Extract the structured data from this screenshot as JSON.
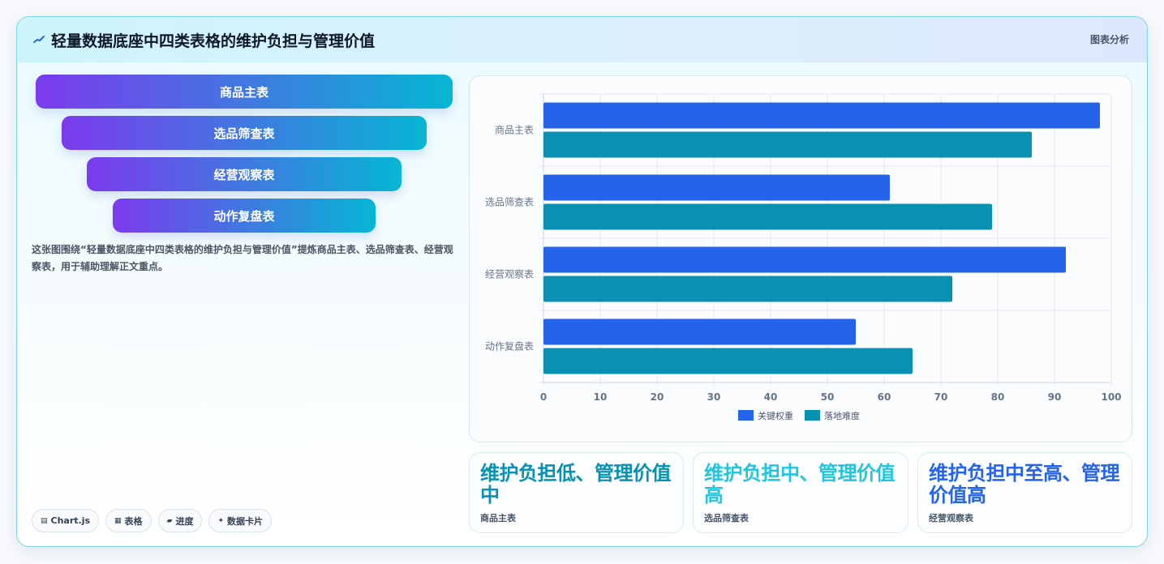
{
  "header": {
    "title": "轻量数据底座中四类表格的维护负担与管理价值",
    "tag": "图表分析",
    "icon": "chart-sparkline-icon"
  },
  "funnel": {
    "items": [
      "商品主表",
      "选品筛查表",
      "经营观察表",
      "动作复盘表"
    ]
  },
  "description": "这张图围绕“轻量数据底座中四类表格的维护负担与管理价值”提炼商品主表、选品筛查表、经营观察表，用于辅助理解正文重点。",
  "chips": [
    {
      "icon": "chart-icon",
      "glyph": "▤",
      "label": "Chart.js"
    },
    {
      "icon": "table-icon",
      "glyph": "▦",
      "label": "表格"
    },
    {
      "icon": "progress-icon",
      "glyph": "▰",
      "label": "进度"
    },
    {
      "icon": "sparkle-icon",
      "glyph": "✦",
      "label": "数据卡片"
    }
  ],
  "chart_data": {
    "type": "bar",
    "orientation": "horizontal",
    "categories": [
      "商品主表",
      "选品筛查表",
      "经营观察表",
      "动作复盘表"
    ],
    "series": [
      {
        "name": "关键权重",
        "values": [
          98,
          61,
          92,
          55
        ],
        "color": "#2563eb"
      },
      {
        "name": "落地难度",
        "values": [
          86,
          79,
          72,
          65
        ],
        "color": "#0891b2"
      }
    ],
    "xlim": [
      0,
      100
    ],
    "xticks": [
      0,
      10,
      20,
      30,
      40,
      50,
      60,
      70,
      80,
      90,
      100
    ],
    "grid": true,
    "legend": "bottom"
  },
  "stats": [
    {
      "value": "维护负担低、管理价值中",
      "label": "商品主表",
      "color": "#0891b2"
    },
    {
      "value": "维护负担中、管理价值高",
      "label": "选品筛查表",
      "color": "#22c5dc"
    },
    {
      "value": "维护负担中至高、管理价值高",
      "label": "经营观察表",
      "color": "#2563eb"
    }
  ]
}
